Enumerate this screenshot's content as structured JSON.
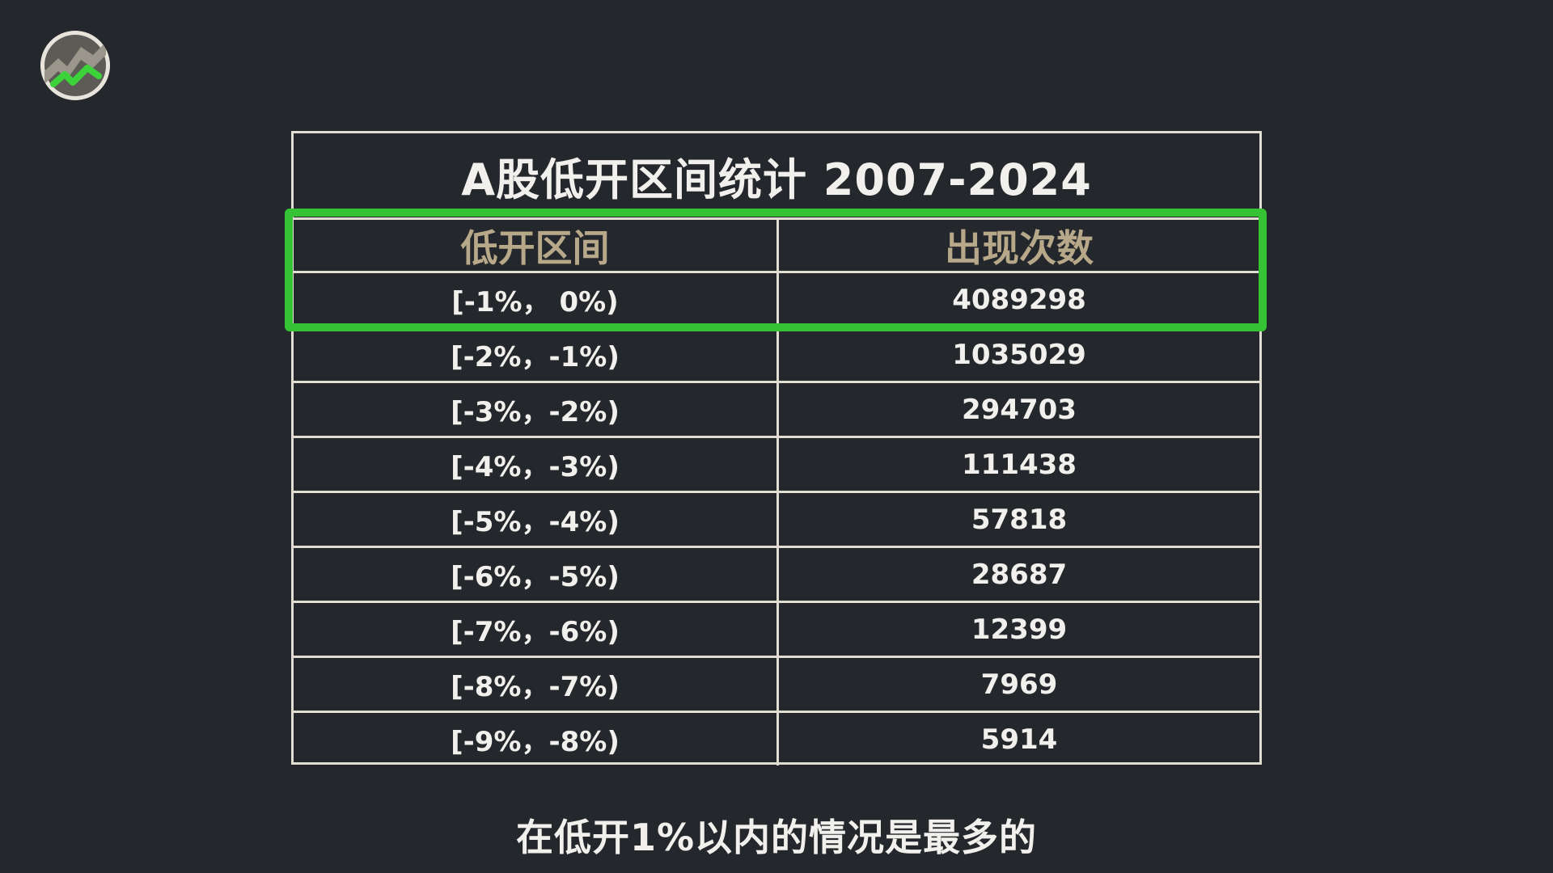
{
  "chart_data": {
    "type": "table",
    "title": "A股低开区间统计 2007-2024",
    "columns": [
      "低开区间",
      "出现次数"
    ],
    "rows": [
      [
        "[-1%， 0%)",
        "4089298"
      ],
      [
        "[-2%，-1%)",
        "1035029"
      ],
      [
        "[-3%，-2%)",
        "294703"
      ],
      [
        "[-4%，-3%)",
        "111438"
      ],
      [
        "[-5%，-4%)",
        "57818"
      ],
      [
        "[-6%，-5%)",
        "28687"
      ],
      [
        "[-7%，-6%)",
        "12399"
      ],
      [
        "[-8%，-7%)",
        "7969"
      ],
      [
        "[-9%，-8%)",
        "5914"
      ]
    ],
    "values": [
      4089298,
      1035029,
      294703,
      111438,
      57818,
      28687,
      12399,
      7969,
      5914
    ],
    "highlight_color": "#35c234"
  },
  "caption": "在低开1%以内的情况是最多的",
  "logo": {
    "icon": "stock-chart-logo-icon"
  },
  "colors": {
    "background": "#24272c",
    "header_text": "#b8a88a",
    "border": "#e2ddd3",
    "highlight": "#35c234"
  }
}
